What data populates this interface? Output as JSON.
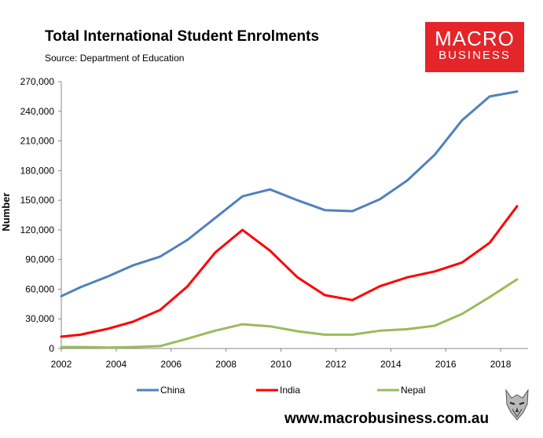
{
  "header": {
    "title": "Total International Student Enrolments",
    "source": "Source: Department of Education"
  },
  "logo": {
    "line1": "MACRO",
    "line2": "BUSINESS"
  },
  "footer": {
    "url": "www.macrobusiness.com.au"
  },
  "colors": {
    "China": "#4f81bd",
    "India": "#ff0000",
    "Nepal": "#9bbb59",
    "logo_bg": "#e4252a"
  },
  "chart_data": {
    "type": "line",
    "title": "Total International Student Enrolments",
    "xlabel": "",
    "ylabel": "Number",
    "xlim": [
      2002,
      2019
    ],
    "ylim": [
      0,
      270000
    ],
    "xticks": [
      2002,
      2004,
      2006,
      2008,
      2010,
      2012,
      2014,
      2016,
      2018
    ],
    "yticks": [
      0,
      30000,
      60000,
      90000,
      120000,
      150000,
      180000,
      210000,
      240000,
      270000
    ],
    "ytick_labels": [
      "0",
      "30,000",
      "60,000",
      "90,000",
      "120,000",
      "150,000",
      "180,000",
      "210,000",
      "240,000",
      "270,000"
    ],
    "grid": false,
    "legend_position": "bottom",
    "x": [
      2002,
      2002.7,
      2003.7,
      2004.6,
      2005.6,
      2006.6,
      2007.6,
      2008.6,
      2009.6,
      2010.6,
      2011.6,
      2012.6,
      2013.6,
      2014.6,
      2015.6,
      2016.6,
      2017.6,
      2018.6
    ],
    "series": [
      {
        "name": "China",
        "values": [
          53000,
          62000,
          73000,
          84000,
          93000,
          110000,
          132000,
          154000,
          161000,
          150000,
          140000,
          139000,
          151000,
          170000,
          196000,
          231000,
          255000,
          260000
        ]
      },
      {
        "name": "India",
        "values": [
          12000,
          14000,
          20000,
          27000,
          39000,
          63000,
          97000,
          120000,
          99000,
          72000,
          54000,
          49000,
          63000,
          72000,
          78000,
          87000,
          107000,
          144000
        ]
      },
      {
        "name": "Nepal",
        "values": [
          1500,
          1500,
          1000,
          1500,
          2500,
          10000,
          18000,
          24500,
          22500,
          17500,
          14000,
          14000,
          18000,
          19500,
          23000,
          35000,
          52000,
          70000
        ]
      }
    ]
  }
}
